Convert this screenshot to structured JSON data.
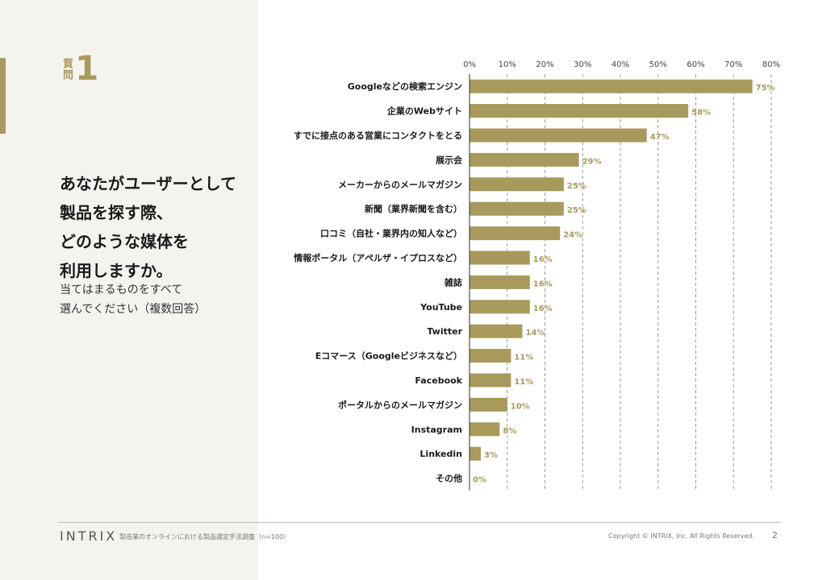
{
  "question": {
    "label": "質問",
    "number": "1",
    "title": "あなたがユーザーとして\n製品を探す際、\nどのような媒体を\n利用しますか。",
    "subtitle": "当てはまるものをすべて\n選んでください（複数回答）"
  },
  "footer": {
    "logo": "INTRIX",
    "source": "製造業のオンラインにおける製品選定手法調査（n=100）",
    "copyright": "Copyright © INTRIX, Inc. All Rights Reserved.",
    "page": "2"
  },
  "colors": {
    "bar": "#a89a5c",
    "value_label": "#a89a5c",
    "panel": "#f4f3ee"
  },
  "chart_data": {
    "type": "bar",
    "orientation": "horizontal",
    "categories": [
      "Googleなどの検索エンジン",
      "企業のWebサイト",
      "すでに接点のある営業にコンタクトをとる",
      "展示会",
      "メーカーからのメールマガジン",
      "新聞（業界新聞を含む）",
      "口コミ（自社・業界内の知人など）",
      "情報ポータル（アペルザ・イプロスなど）",
      "雑誌",
      "YouTube",
      "Twitter",
      "Eコマース（Googleビジネスなど）",
      "Facebook",
      "ポータルからのメールマガジン",
      "Instagram",
      "Linkedin",
      "その他"
    ],
    "values": [
      75,
      58,
      47,
      29,
      25,
      25,
      24,
      16,
      16,
      16,
      14,
      11,
      11,
      10,
      8,
      3,
      0
    ],
    "value_labels": [
      "75%",
      "58%",
      "47%",
      "29%",
      "25%",
      "25%",
      "24%",
      "16%",
      "16%",
      "16%",
      "14%",
      "11%",
      "11%",
      "10%",
      "8%",
      "3%",
      "0%"
    ],
    "xlim": [
      0,
      80
    ],
    "ticks": [
      0,
      10,
      20,
      30,
      40,
      50,
      60,
      70,
      80
    ],
    "tick_labels": [
      "0%",
      "10%",
      "20%",
      "30%",
      "40%",
      "50%",
      "60%",
      "70%",
      "80%"
    ],
    "axis_position": "top",
    "grid": "dashed vertical",
    "legend": "none"
  }
}
